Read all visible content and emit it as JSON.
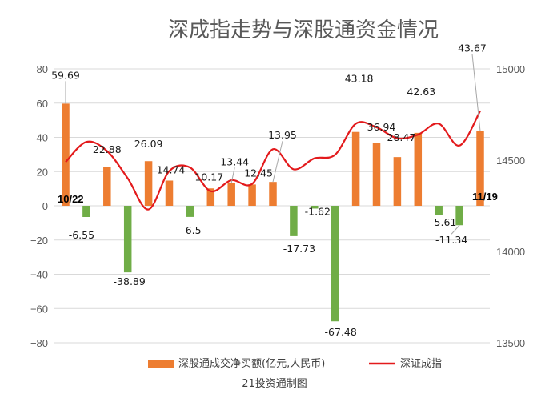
{
  "chart_data": {
    "type": "bar",
    "title": "深成指走势与深股通资金情况",
    "source_note": "21投资通制图",
    "left_axis": {
      "min": -80,
      "max": 80,
      "step": 20,
      "ticks": [
        "80",
        "60",
        "40",
        "20",
        "0",
        "−20",
        "−40",
        "−60",
        "−80"
      ]
    },
    "right_axis": {
      "min": 13500,
      "max": 15000,
      "step": 500,
      "ticks": [
        "15000",
        "14500",
        "14000",
        "13500"
      ]
    },
    "start_label": "10/22",
    "end_label": "11/19",
    "colors": {
      "bar_positive": "#ED7D31",
      "bar_negative": "#70AD47",
      "line": "#E31A1C"
    },
    "series": [
      {
        "name": "深股通成交净买额(亿元,人民币)",
        "kind": "bar",
        "axis": "left",
        "values": [
          59.69,
          -6.55,
          22.88,
          -38.89,
          26.09,
          14.74,
          -6.5,
          10.17,
          13.44,
          12.45,
          13.95,
          -17.73,
          -1.62,
          -67.48,
          43.18,
          36.94,
          28.47,
          42.63,
          -5.61,
          -11.34,
          43.67
        ],
        "labels": [
          "59.69",
          "-6.55",
          "22.88",
          "-38.89",
          "26.09",
          "14.74",
          "-6.5",
          "10.17",
          "13.44",
          "12.45",
          "13.95",
          "-17.73",
          "-1.62",
          "-67.48",
          "43.18",
          "36.94",
          "28.47",
          "42.63",
          "-5.61",
          "-11.34",
          "43.67"
        ]
      },
      {
        "name": "深证成指",
        "kind": "line",
        "axis": "right",
        "values": [
          14490,
          14600,
          14550,
          14400,
          14230,
          14440,
          14460,
          14330,
          14390,
          14370,
          14560,
          14450,
          14510,
          14530,
          14700,
          14680,
          14620,
          14640,
          14700,
          14580,
          14770
        ]
      }
    ]
  }
}
